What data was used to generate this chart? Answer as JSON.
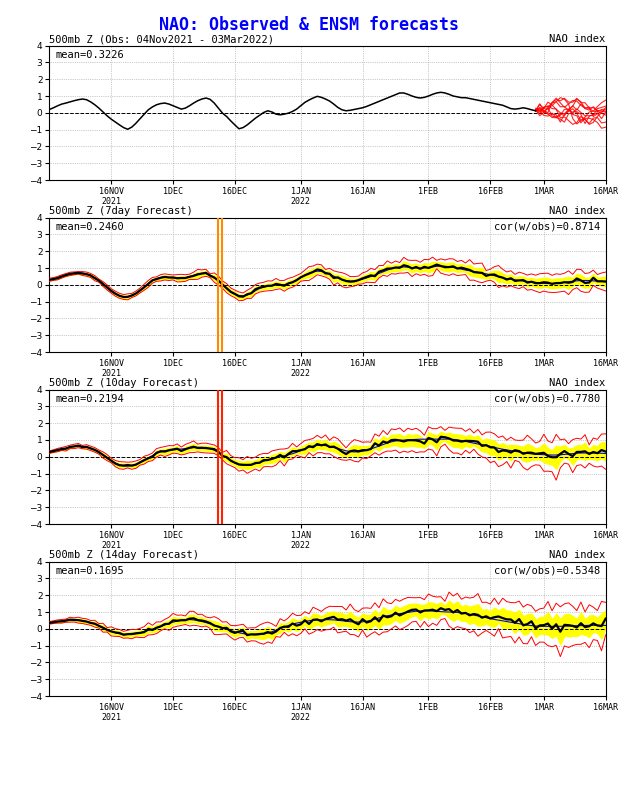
{
  "title": "NAO: Observed & ENSM forecasts",
  "title_color": "#0000FF",
  "bg_color": "#ffffff",
  "subplots": [
    {
      "subtitle_left": "500mb Z (Obs: 04Nov2021 - 03Mar2022)",
      "subtitle_right": "NAO index",
      "mean_label": "mean=0.3226",
      "cor_label": "",
      "ylim": [
        -4,
        4
      ],
      "yticks": [
        -4,
        -3,
        -2,
        -1,
        0,
        1,
        2,
        3,
        4
      ]
    },
    {
      "subtitle_left": "500mb Z (7day Forecast)",
      "subtitle_right": "NAO index",
      "mean_label": "mean=0.2460",
      "cor_label": "cor(w/obs)=0.8714",
      "ylim": [
        -4,
        4
      ],
      "yticks": [
        -4,
        -3,
        -2,
        -1,
        0,
        1,
        2,
        3,
        4
      ],
      "vline_color": "#FF8C00",
      "vline_day": 41
    },
    {
      "subtitle_left": "500mb Z (10day Forecast)",
      "subtitle_right": "NAO index",
      "mean_label": "mean=0.2194",
      "cor_label": "cor(w/obs)=0.7780",
      "ylim": [
        -4,
        4
      ],
      "yticks": [
        -4,
        -3,
        -2,
        -1,
        0,
        1,
        2,
        3,
        4
      ],
      "vline_color": "#FF2200",
      "vline_day": 41
    },
    {
      "subtitle_left": "500mb Z (14day Forecast)",
      "subtitle_right": "NAO index",
      "mean_label": "mean=0.1695",
      "cor_label": "cor(w/obs)=0.5348",
      "ylim": [
        -4,
        4
      ],
      "yticks": [
        -4,
        -3,
        -2,
        -1,
        0,
        1,
        2,
        3,
        4
      ]
    }
  ],
  "xtick_labels": [
    "16NOV\n2021",
    "1DEC",
    "16DEC",
    "1JAN\n2022",
    "16JAN",
    "1FEB",
    "16FEB",
    "1MAR",
    "16MAR"
  ],
  "xtick_positions": [
    15,
    30,
    45,
    61,
    76,
    92,
    107,
    120,
    135
  ],
  "n_days": 136,
  "obs_end_day": 118,
  "obs_data": [
    0.2,
    0.3,
    0.42,
    0.52,
    0.58,
    0.65,
    0.72,
    0.78,
    0.82,
    0.78,
    0.65,
    0.48,
    0.28,
    0.05,
    -0.18,
    -0.38,
    -0.55,
    -0.72,
    -0.88,
    -0.98,
    -0.85,
    -0.62,
    -0.35,
    -0.08,
    0.18,
    0.35,
    0.48,
    0.55,
    0.58,
    0.52,
    0.42,
    0.32,
    0.22,
    0.28,
    0.42,
    0.58,
    0.72,
    0.82,
    0.88,
    0.8,
    0.58,
    0.28,
    -0.02,
    -0.22,
    -0.48,
    -0.72,
    -0.95,
    -0.88,
    -0.72,
    -0.52,
    -0.32,
    -0.15,
    0.02,
    0.12,
    0.05,
    -0.08,
    -0.12,
    -0.08,
    -0.02,
    0.08,
    0.22,
    0.42,
    0.62,
    0.76,
    0.88,
    0.98,
    0.92,
    0.82,
    0.7,
    0.52,
    0.32,
    0.18,
    0.12,
    0.15,
    0.2,
    0.25,
    0.3,
    0.38,
    0.48,
    0.58,
    0.68,
    0.78,
    0.88,
    0.98,
    1.08,
    1.18,
    1.18,
    1.1,
    1.0,
    0.92,
    0.88,
    0.92,
    1.0,
    1.1,
    1.18,
    1.22,
    1.18,
    1.1,
    1.0,
    0.95,
    0.9,
    0.9,
    0.85,
    0.8,
    0.75,
    0.7,
    0.65,
    0.6,
    0.55,
    0.5,
    0.45,
    0.35,
    0.25,
    0.22,
    0.25,
    0.3,
    0.25,
    0.18,
    0.12,
    0.08,
    0.05,
    0.02,
    0.05,
    0.08,
    0.12,
    0.15,
    0.18,
    0.22,
    0.25,
    0.28,
    0.3,
    0.28,
    0.25,
    0.22,
    0.18,
    0.15
  ]
}
